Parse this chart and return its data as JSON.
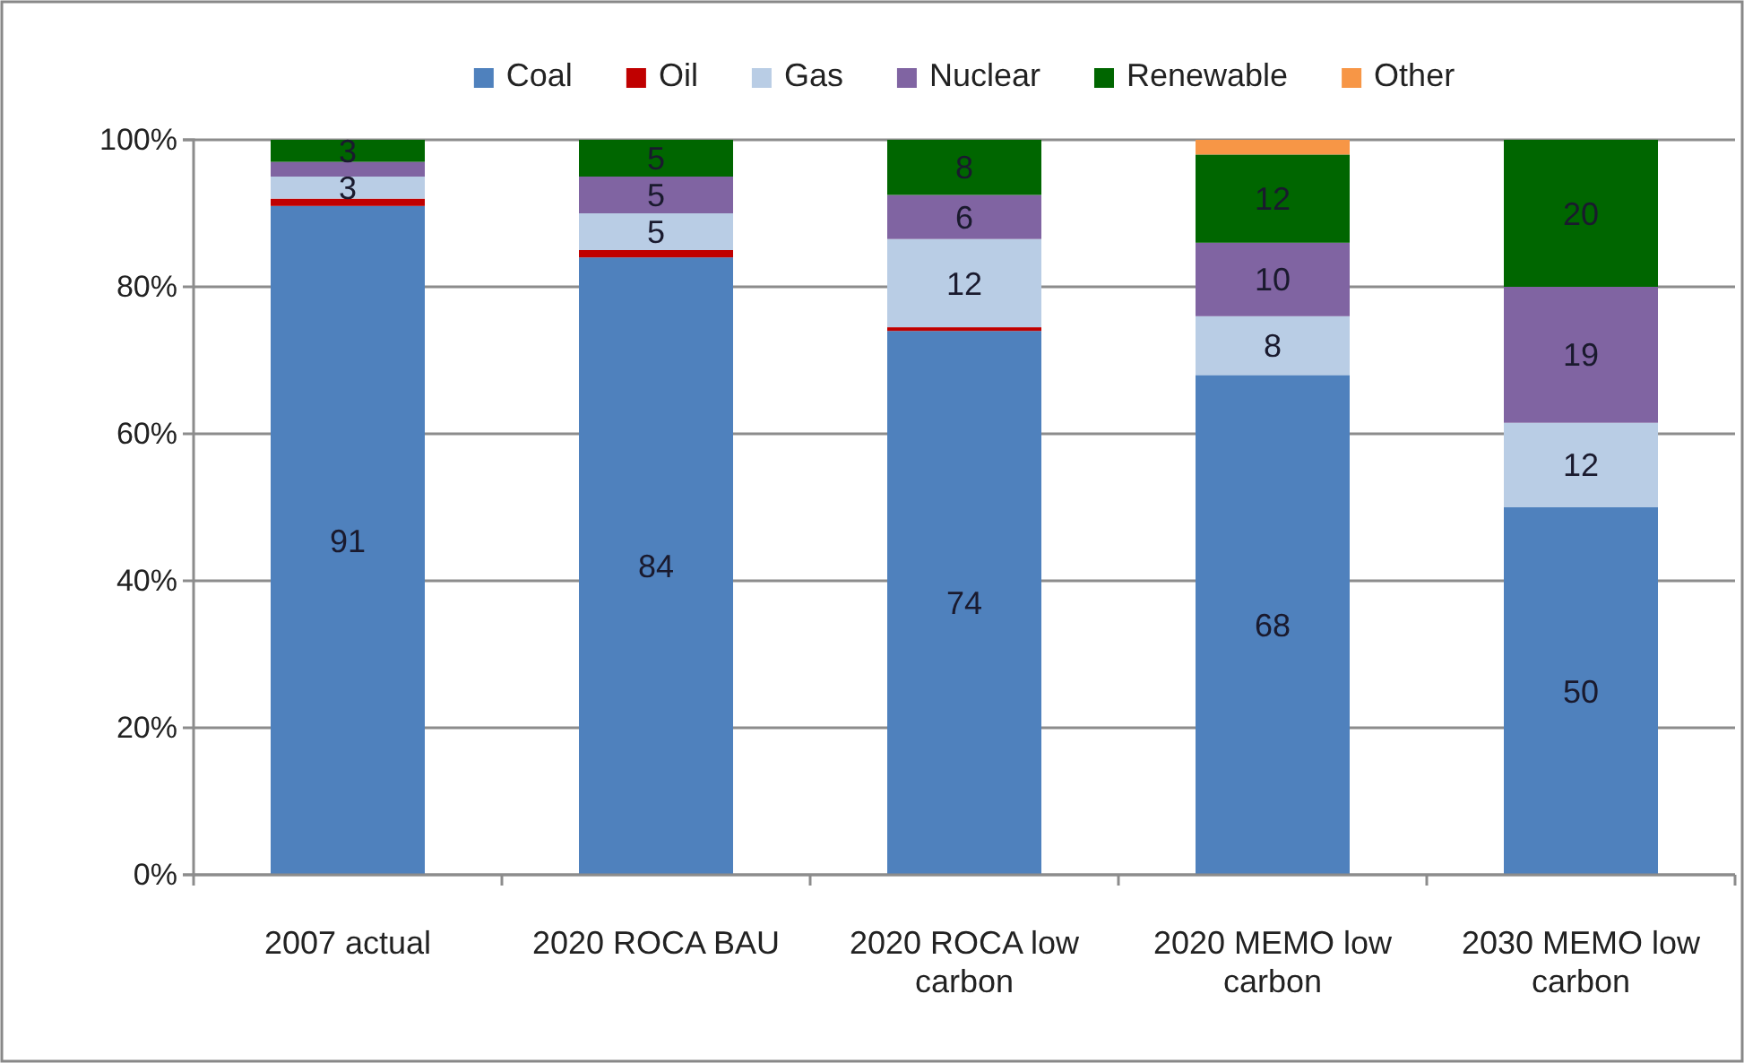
{
  "chart_data": {
    "type": "bar",
    "stacked": true,
    "categories": [
      "2007 actual",
      "2020 ROCA BAU",
      "2020 ROCA low carbon",
      "2020 MEMO low carbon",
      "2030 MEMO low carbon"
    ],
    "series": [
      {
        "name": "Coal",
        "color": "#4f81bd",
        "values": [
          91,
          84,
          74,
          68,
          50
        ],
        "value_labels": [
          "91",
          "84",
          "74",
          "68",
          "50"
        ]
      },
      {
        "name": "Oil",
        "color": "#c00000",
        "values": [
          1,
          1,
          0.5,
          0,
          0
        ],
        "value_labels": [
          null,
          null,
          null,
          null,
          null
        ]
      },
      {
        "name": "Gas",
        "color": "#b9cde5",
        "values": [
          3,
          5,
          12,
          8,
          11.5
        ],
        "value_labels": [
          "3",
          "5",
          "12",
          "8",
          "12"
        ]
      },
      {
        "name": "Nuclear",
        "color": "#8064a2",
        "values": [
          2,
          5,
          6,
          10,
          18.5
        ],
        "value_labels": [
          null,
          "5",
          "6",
          "10",
          "19"
        ]
      },
      {
        "name": "Renewable",
        "color": "#006600",
        "values": [
          3,
          5,
          7.5,
          12,
          20
        ],
        "value_labels": [
          "3",
          "5",
          "8",
          "12",
          "20"
        ]
      },
      {
        "name": "Other",
        "color": "#f79646",
        "values": [
          0,
          0,
          0,
          2,
          0
        ],
        "value_labels": [
          null,
          null,
          null,
          null,
          null
        ]
      }
    ],
    "ylim": [
      0,
      100
    ],
    "yticks": [
      {
        "value": 0,
        "label": "0%"
      },
      {
        "value": 20,
        "label": "20%"
      },
      {
        "value": 40,
        "label": "40%"
      },
      {
        "value": 60,
        "label": "60%"
      },
      {
        "value": 80,
        "label": "80%"
      },
      {
        "value": 100,
        "label": "100%"
      }
    ],
    "grid": "y",
    "legend": "top"
  }
}
